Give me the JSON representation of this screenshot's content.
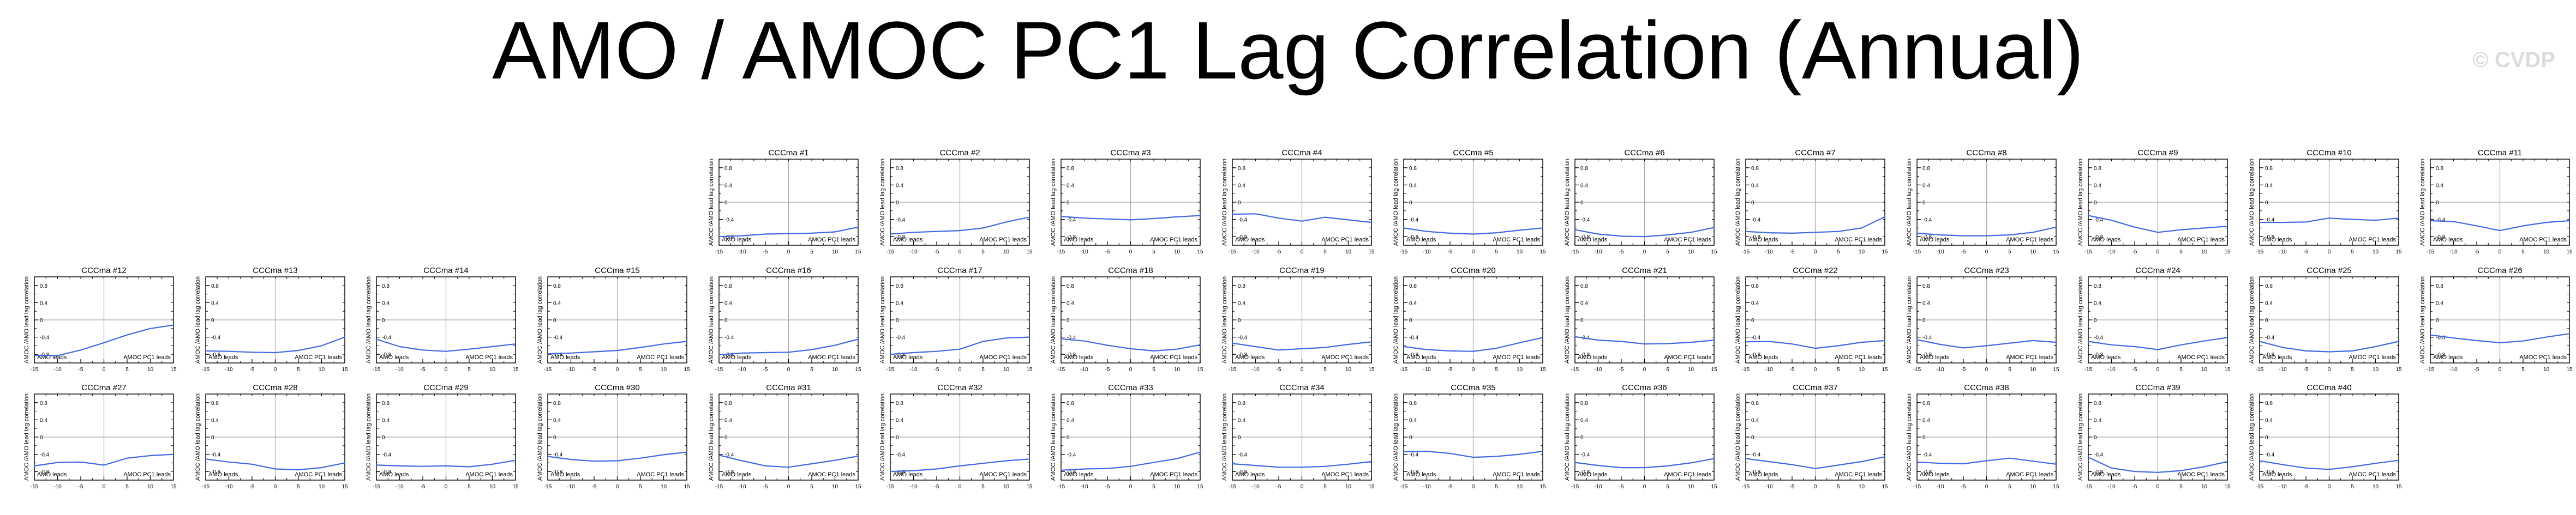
{
  "header": {
    "title": "AMO / AMOC PC1 Lag Correlation (Annual)",
    "watermark": "© CVDP"
  },
  "colors": {
    "series_line": "#4169e1",
    "zero_line": "#a8a8a8",
    "axis": "#000000"
  },
  "chart_data": {
    "type": "line",
    "panel_count": 40,
    "shared": {
      "x": [
        -15,
        -10,
        -5,
        0,
        5,
        10,
        15
      ],
      "xlim": [
        -15,
        15
      ],
      "ylim": [
        -1,
        1
      ],
      "xticks": [
        "-15",
        "-10",
        "-5",
        "0",
        "5",
        "10",
        "15"
      ],
      "yticks": [
        "-0.8",
        "-0.4",
        "0",
        "0.4",
        "0.8"
      ],
      "ylabel": "AMOC /AMO lead lag correlation",
      "left_annotation": "AMO leads",
      "right_annotation": "AMOC PC1 leads",
      "grid": "zero lines only"
    },
    "panels": [
      {
        "title": "CCCma #1",
        "y": [
          -0.8,
          -0.78,
          -0.74,
          -0.73,
          -0.72,
          -0.69,
          -0.58
        ]
      },
      {
        "title": "CCCma #2",
        "y": [
          -0.74,
          -0.7,
          -0.68,
          -0.66,
          -0.6,
          -0.46,
          -0.35
        ]
      },
      {
        "title": "CCCma #3",
        "y": [
          -0.33,
          -0.37,
          -0.39,
          -0.41,
          -0.38,
          -0.34,
          -0.31
        ]
      },
      {
        "title": "CCCma #4",
        "y": [
          -0.28,
          -0.27,
          -0.37,
          -0.44,
          -0.35,
          -0.41,
          -0.47
        ]
      },
      {
        "title": "CCCma #5",
        "y": [
          -0.6,
          -0.68,
          -0.72,
          -0.74,
          -0.71,
          -0.65,
          -0.6
        ]
      },
      {
        "title": "CCCma #6",
        "y": [
          -0.64,
          -0.74,
          -0.79,
          -0.8,
          -0.76,
          -0.7,
          -0.59
        ]
      },
      {
        "title": "CCCma #7",
        "y": [
          -0.68,
          -0.71,
          -0.72,
          -0.7,
          -0.68,
          -0.6,
          -0.34
        ]
      },
      {
        "title": "CCCma #8",
        "y": [
          -0.72,
          -0.76,
          -0.78,
          -0.78,
          -0.76,
          -0.7,
          -0.58
        ]
      },
      {
        "title": "CCCma #9",
        "y": [
          -0.31,
          -0.42,
          -0.58,
          -0.7,
          -0.64,
          -0.6,
          -0.56
        ]
      },
      {
        "title": "CCCma #10",
        "y": [
          -0.47,
          -0.47,
          -0.46,
          -0.37,
          -0.4,
          -0.42,
          -0.37
        ]
      },
      {
        "title": "CCCma #11",
        "y": [
          -0.43,
          -0.45,
          -0.55,
          -0.66,
          -0.55,
          -0.47,
          -0.43
        ]
      },
      {
        "title": "CCCma #12",
        "y": [
          -0.82,
          -0.83,
          -0.7,
          -0.53,
          -0.35,
          -0.2,
          -0.12
        ]
      },
      {
        "title": "CCCma #13",
        "y": [
          -0.72,
          -0.73,
          -0.75,
          -0.76,
          -0.71,
          -0.6,
          -0.4
        ]
      },
      {
        "title": "CCCma #14",
        "y": [
          -0.45,
          -0.62,
          -0.7,
          -0.73,
          -0.68,
          -0.62,
          -0.56
        ]
      },
      {
        "title": "CCCma #15",
        "y": [
          -0.79,
          -0.77,
          -0.74,
          -0.71,
          -0.64,
          -0.56,
          -0.5
        ]
      },
      {
        "title": "CCCma #16",
        "y": [
          -0.81,
          -0.77,
          -0.76,
          -0.75,
          -0.69,
          -0.59,
          -0.45
        ]
      },
      {
        "title": "CCCma #17",
        "y": [
          -0.8,
          -0.76,
          -0.73,
          -0.68,
          -0.5,
          -0.42,
          -0.4
        ]
      },
      {
        "title": "CCCma #18",
        "y": [
          -0.44,
          -0.49,
          -0.59,
          -0.67,
          -0.72,
          -0.68,
          -0.58
        ]
      },
      {
        "title": "CCCma #19",
        "y": [
          -0.54,
          -0.62,
          -0.7,
          -0.67,
          -0.64,
          -0.57,
          -0.51
        ]
      },
      {
        "title": "CCCma #20",
        "y": [
          -0.62,
          -0.69,
          -0.72,
          -0.73,
          -0.66,
          -0.53,
          -0.41
        ]
      },
      {
        "title": "CCCma #21",
        "y": [
          -0.39,
          -0.47,
          -0.5,
          -0.56,
          -0.55,
          -0.52,
          -0.47
        ]
      },
      {
        "title": "CCCma #22",
        "y": [
          -0.51,
          -0.5,
          -0.56,
          -0.66,
          -0.6,
          -0.52,
          -0.48
        ]
      },
      {
        "title": "CCCma #23",
        "y": [
          -0.46,
          -0.57,
          -0.65,
          -0.6,
          -0.54,
          -0.48,
          -0.52
        ]
      },
      {
        "title": "CCCma #24",
        "y": [
          -0.5,
          -0.58,
          -0.62,
          -0.69,
          -0.58,
          -0.49,
          -0.41
        ]
      },
      {
        "title": "CCCma #25",
        "y": [
          -0.5,
          -0.64,
          -0.72,
          -0.74,
          -0.72,
          -0.62,
          -0.5
        ]
      },
      {
        "title": "CCCma #26",
        "y": [
          -0.35,
          -0.42,
          -0.48,
          -0.53,
          -0.49,
          -0.4,
          -0.32
        ]
      },
      {
        "title": "CCCma #27",
        "y": [
          -0.67,
          -0.59,
          -0.58,
          -0.65,
          -0.49,
          -0.43,
          -0.4
        ]
      },
      {
        "title": "CCCma #28",
        "y": [
          -0.51,
          -0.58,
          -0.63,
          -0.74,
          -0.76,
          -0.71,
          -0.6
        ]
      },
      {
        "title": "CCCma #29",
        "y": [
          -0.65,
          -0.67,
          -0.68,
          -0.67,
          -0.69,
          -0.63,
          -0.54
        ]
      },
      {
        "title": "CCCma #30",
        "y": [
          -0.45,
          -0.52,
          -0.56,
          -0.55,
          -0.49,
          -0.41,
          -0.35
        ]
      },
      {
        "title": "CCCma #31",
        "y": [
          -0.42,
          -0.55,
          -0.67,
          -0.7,
          -0.62,
          -0.54,
          -0.44
        ]
      },
      {
        "title": "CCCma #32",
        "y": [
          -0.8,
          -0.78,
          -0.74,
          -0.67,
          -0.61,
          -0.55,
          -0.51
        ]
      },
      {
        "title": "CCCma #33",
        "y": [
          -0.77,
          -0.74,
          -0.73,
          -0.68,
          -0.59,
          -0.5,
          -0.35
        ]
      },
      {
        "title": "CCCma #34",
        "y": [
          -0.62,
          -0.66,
          -0.7,
          -0.7,
          -0.68,
          -0.63,
          -0.57
        ]
      },
      {
        "title": "CCCma #35",
        "y": [
          -0.34,
          -0.33,
          -0.38,
          -0.47,
          -0.45,
          -0.4,
          -0.33
        ]
      },
      {
        "title": "CCCma #36",
        "y": [
          -0.59,
          -0.66,
          -0.71,
          -0.71,
          -0.67,
          -0.6,
          -0.5
        ]
      },
      {
        "title": "CCCma #37",
        "y": [
          -0.5,
          -0.57,
          -0.64,
          -0.73,
          -0.65,
          -0.57,
          -0.46
        ]
      },
      {
        "title": "CCCma #38",
        "y": [
          -0.58,
          -0.61,
          -0.62,
          -0.55,
          -0.49,
          -0.56,
          -0.63
        ]
      },
      {
        "title": "CCCma #39",
        "y": [
          -0.47,
          -0.72,
          -0.8,
          -0.82,
          -0.78,
          -0.69,
          -0.57
        ]
      },
      {
        "title": "CCCma #40",
        "y": [
          -0.55,
          -0.64,
          -0.72,
          -0.75,
          -0.69,
          -0.61,
          -0.54
        ]
      }
    ]
  }
}
